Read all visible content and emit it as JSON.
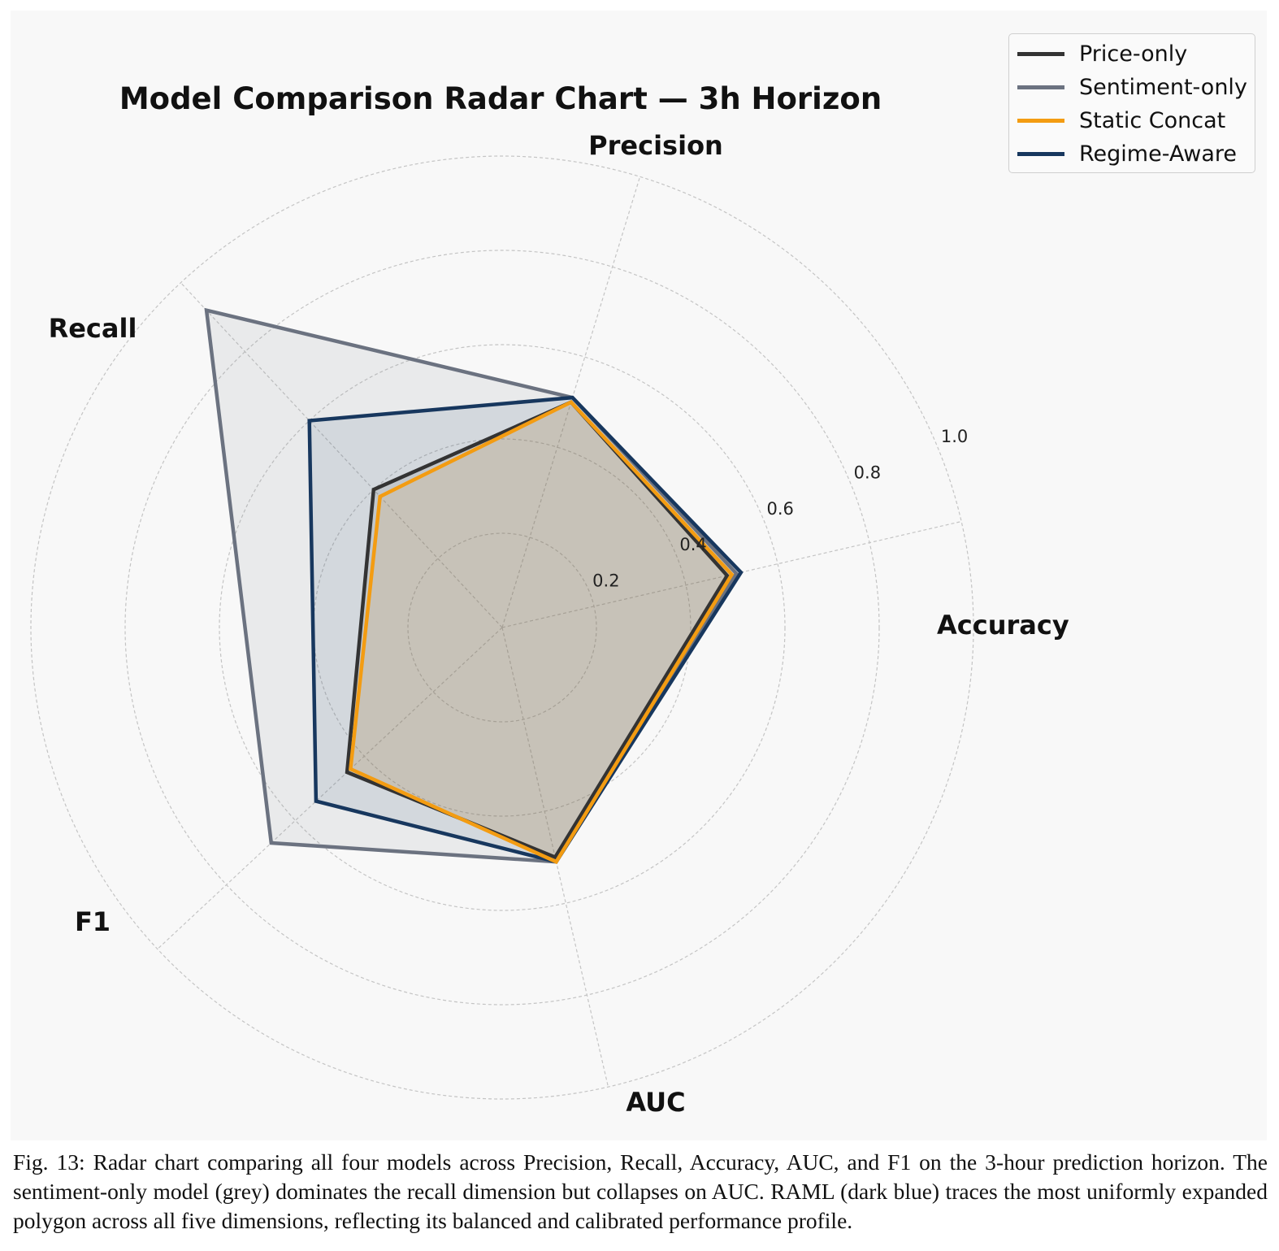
{
  "chart_data": {
    "type": "radar",
    "title": "Model Comparison Radar Chart — 3h Horizon",
    "axes": [
      "Accuracy",
      "Precision",
      "Recall",
      "F1",
      "AUC"
    ],
    "radial_ticks": [
      "0.2",
      "0.4",
      "0.6",
      "0.8",
      "1.0"
    ],
    "rlim": [
      0,
      1.0
    ],
    "grid": true,
    "legend_position": "top-right",
    "series": [
      {
        "name": "Sentiment-only",
        "color": "#6b7280",
        "values": [
          0.51,
          0.51,
          0.92,
          0.67,
          0.51
        ]
      },
      {
        "name": "Regime-Aware",
        "color": "#17375e",
        "values": [
          0.52,
          0.51,
          0.6,
          0.54,
          0.51
        ]
      },
      {
        "name": "Price-only",
        "color": "#333333",
        "values": [
          0.49,
          0.5,
          0.4,
          0.45,
          0.5
        ]
      },
      {
        "name": "Static Concat",
        "color": "#f39c12",
        "values": [
          0.5,
          0.5,
          0.38,
          0.44,
          0.51
        ]
      }
    ],
    "legend_order": [
      "Price-only",
      "Sentiment-only",
      "Static Concat",
      "Regime-Aware"
    ]
  },
  "caption": "Fig. 13: Radar chart comparing all four models across Precision, Recall, Accuracy, AUC, and F1 on the 3-hour prediction horizon. The sentiment-only model (grey) dominates the recall dimension but collapses on AUC. RAML (dark blue) traces the most uniformly expanded polygon across all five dimensions, reflecting its balanced and calibrated performance profile."
}
